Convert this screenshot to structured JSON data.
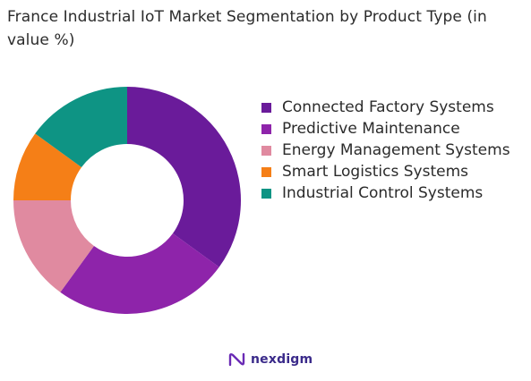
{
  "chart_data": {
    "type": "pie",
    "title": "France Industrial IoT Market Segmentation by Product Type (in value %)",
    "categories": [
      "Connected Factory Systems",
      "Predictive Maintenance",
      "Energy Management Systems",
      "Smart Logistics Systems",
      "Industrial Control Systems"
    ],
    "values": [
      35,
      25,
      15,
      10,
      15
    ],
    "colors": [
      "#6a1b9a",
      "#8e24aa",
      "#e08aa0",
      "#f57f17",
      "#0e9484"
    ],
    "legend_position": "right"
  },
  "brand": {
    "name": "nexdigm",
    "logo_icon": "nexdigm-logo-icon"
  }
}
